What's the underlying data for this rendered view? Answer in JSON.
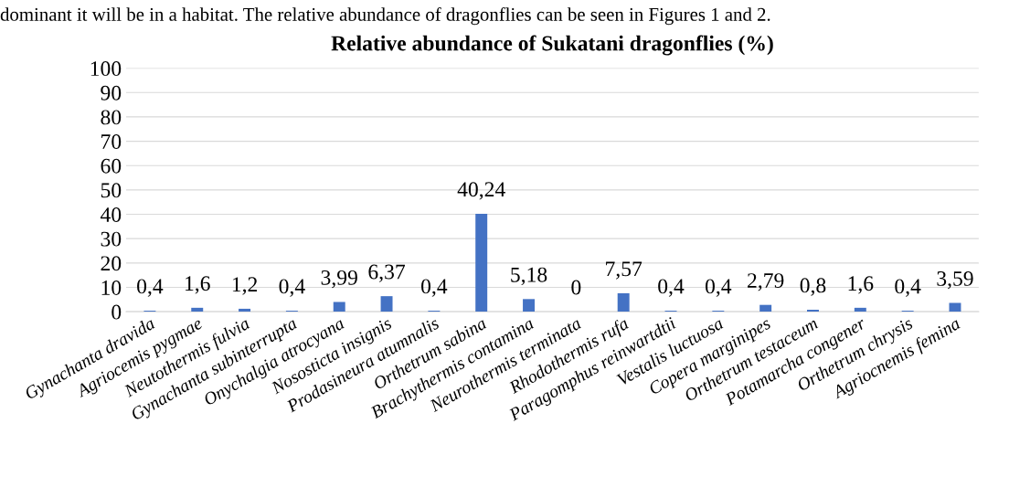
{
  "chart_data": {
    "type": "bar",
    "title": "Relative abundance of Sukatani dragonflies (%)",
    "annotations": [
      "dominant it will be in a habitat. The relative abundance of dragonflies can be seen in Figures 1 and 2."
    ],
    "categories": [
      "Gynachanta dravida",
      "Agriocemis pygmae",
      "Neutothermis fulvia",
      "Gynachanta subinterrupta",
      "Onychalgia atrocyana",
      "Nososticta insignis",
      "Prodasineura atumnalis",
      "Orthetrum sabina",
      "Brachythermis contamina",
      "Neurothermis terminata",
      "Rhodothermis rufa",
      "Paragomphus reinwartdtii",
      "Vestalis luctuosa",
      "Copera marginipes",
      "Orthetrum testaceum",
      "Potamarcha congener",
      "Orthetrum chrysis",
      "Agriocnemis femina"
    ],
    "values": [
      0.4,
      1.6,
      1.2,
      0.4,
      3.99,
      6.37,
      0.4,
      40.24,
      5.18,
      0,
      7.57,
      0.4,
      0.4,
      2.79,
      0.8,
      1.6,
      0.4,
      3.59
    ],
    "value_labels": [
      "0,4",
      "1,6",
      "1,2",
      "0,4",
      "3,99",
      "6,37",
      "0,4",
      "40,24",
      "5,18",
      "0",
      "7,57",
      "0,4",
      "0,4",
      "2,79",
      "0,8",
      "1,6",
      "0,4",
      "3,59"
    ],
    "color": "#4472c4",
    "ylim": [
      0,
      100
    ],
    "yticks": [
      0,
      10,
      20,
      30,
      40,
      50,
      60,
      70,
      80,
      90,
      100
    ],
    "grid": "y"
  }
}
